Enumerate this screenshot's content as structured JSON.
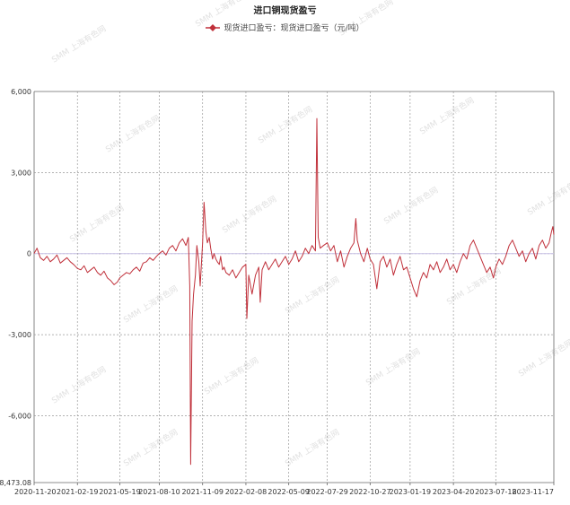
{
  "chart_data": {
    "type": "line",
    "title": "进口铜现货盈亏",
    "xlabel": "",
    "ylabel": "",
    "ylim": [
      -8473.08,
      6000
    ],
    "y_ticks": [
      6000,
      3000,
      0,
      -3000,
      -6000,
      -8473.08
    ],
    "y_tick_labels": [
      "6,000",
      "3,000",
      "0",
      "-3,000",
      "-6,000",
      "-8,473.08"
    ],
    "x_range": [
      "2020-11-20",
      "2023-11-17"
    ],
    "x_ticks": [
      "2020-11-20",
      "2021-02-19",
      "2021-05-19",
      "2021-08-10",
      "2021-11-09",
      "2022-02-08",
      "2022-05-09",
      "2022-07-29",
      "2022-10-27",
      "2023-01-19",
      "2023-04-20",
      "2023-07-18",
      "2023-11-17"
    ],
    "grid": true,
    "legend_position": "top-center",
    "series": [
      {
        "name": "现货进口盈亏：现货进口盈亏（元/吨）",
        "color": "#c0303a",
        "points": [
          [
            "2020-11-20",
            0
          ],
          [
            "2020-11-26",
            200
          ],
          [
            "2020-12-03",
            -150
          ],
          [
            "2020-12-10",
            -250
          ],
          [
            "2020-12-17",
            -100
          ],
          [
            "2020-12-24",
            -300
          ],
          [
            "2020-12-31",
            -200
          ],
          [
            "2021-01-07",
            -50
          ],
          [
            "2021-01-14",
            -350
          ],
          [
            "2021-01-21",
            -250
          ],
          [
            "2021-01-28",
            -150
          ],
          [
            "2021-02-04",
            -300
          ],
          [
            "2021-02-11",
            -400
          ],
          [
            "2021-02-19",
            -550
          ],
          [
            "2021-02-26",
            -600
          ],
          [
            "2021-03-05",
            -450
          ],
          [
            "2021-03-12",
            -700
          ],
          [
            "2021-03-19",
            -600
          ],
          [
            "2021-03-26",
            -500
          ],
          [
            "2021-04-02",
            -700
          ],
          [
            "2021-04-09",
            -800
          ],
          [
            "2021-04-16",
            -650
          ],
          [
            "2021-04-23",
            -900
          ],
          [
            "2021-04-30",
            -1000
          ],
          [
            "2021-05-07",
            -1150
          ],
          [
            "2021-05-14",
            -1050
          ],
          [
            "2021-05-19",
            -900
          ],
          [
            "2021-05-26",
            -800
          ],
          [
            "2021-06-02",
            -700
          ],
          [
            "2021-06-09",
            -750
          ],
          [
            "2021-06-16",
            -600
          ],
          [
            "2021-06-23",
            -500
          ],
          [
            "2021-06-30",
            -650
          ],
          [
            "2021-07-07",
            -350
          ],
          [
            "2021-07-14",
            -300
          ],
          [
            "2021-07-21",
            -150
          ],
          [
            "2021-07-28",
            -250
          ],
          [
            "2021-08-04",
            -100
          ],
          [
            "2021-08-10",
            0
          ],
          [
            "2021-08-17",
            100
          ],
          [
            "2021-08-24",
            -50
          ],
          [
            "2021-08-31",
            200
          ],
          [
            "2021-09-07",
            300
          ],
          [
            "2021-09-14",
            100
          ],
          [
            "2021-09-21",
            400
          ],
          [
            "2021-09-28",
            550
          ],
          [
            "2021-10-05",
            300
          ],
          [
            "2021-10-10",
            600
          ],
          [
            "2021-10-13",
            -1200
          ],
          [
            "2021-10-15",
            -7800
          ],
          [
            "2021-10-18",
            -2500
          ],
          [
            "2021-10-21",
            -1500
          ],
          [
            "2021-10-25",
            -800
          ],
          [
            "2021-10-28",
            300
          ],
          [
            "2021-11-01",
            -300
          ],
          [
            "2021-11-04",
            -1200
          ],
          [
            "2021-11-09",
            400
          ],
          [
            "2021-11-12",
            1900
          ],
          [
            "2021-11-16",
            800
          ],
          [
            "2021-11-19",
            400
          ],
          [
            "2021-11-23",
            600
          ],
          [
            "2021-11-26",
            200
          ],
          [
            "2021-11-30",
            -200
          ],
          [
            "2021-12-03",
            0
          ],
          [
            "2021-12-07",
            -200
          ],
          [
            "2021-12-10",
            -300
          ],
          [
            "2021-12-14",
            -400
          ],
          [
            "2021-12-17",
            -100
          ],
          [
            "2021-12-21",
            -600
          ],
          [
            "2021-12-24",
            -500
          ],
          [
            "2021-12-28",
            -700
          ],
          [
            "2022-01-04",
            -800
          ],
          [
            "2022-01-11",
            -600
          ],
          [
            "2022-01-18",
            -900
          ],
          [
            "2022-01-25",
            -700
          ],
          [
            "2022-02-01",
            -500
          ],
          [
            "2022-02-08",
            -400
          ],
          [
            "2022-02-10",
            -2400
          ],
          [
            "2022-02-14",
            -800
          ],
          [
            "2022-02-21",
            -1500
          ],
          [
            "2022-02-28",
            -800
          ],
          [
            "2022-03-07",
            -500
          ],
          [
            "2022-03-10",
            -1800
          ],
          [
            "2022-03-14",
            -600
          ],
          [
            "2022-03-21",
            -300
          ],
          [
            "2022-03-28",
            -600
          ],
          [
            "2022-04-04",
            -400
          ],
          [
            "2022-04-11",
            -200
          ],
          [
            "2022-04-18",
            -500
          ],
          [
            "2022-04-25",
            -300
          ],
          [
            "2022-05-02",
            -100
          ],
          [
            "2022-05-09",
            -400
          ],
          [
            "2022-05-16",
            -200
          ],
          [
            "2022-05-23",
            100
          ],
          [
            "2022-05-30",
            -300
          ],
          [
            "2022-06-06",
            -100
          ],
          [
            "2022-06-13",
            200
          ],
          [
            "2022-06-20",
            0
          ],
          [
            "2022-06-27",
            300
          ],
          [
            "2022-07-04",
            100
          ],
          [
            "2022-07-07",
            5000
          ],
          [
            "2022-07-10",
            600
          ],
          [
            "2022-07-14",
            200
          ],
          [
            "2022-07-21",
            300
          ],
          [
            "2022-07-29",
            400
          ],
          [
            "2022-08-05",
            100
          ],
          [
            "2022-08-12",
            300
          ],
          [
            "2022-08-19",
            -300
          ],
          [
            "2022-08-26",
            100
          ],
          [
            "2022-09-02",
            -500
          ],
          [
            "2022-09-09",
            -100
          ],
          [
            "2022-09-16",
            200
          ],
          [
            "2022-09-23",
            400
          ],
          [
            "2022-09-27",
            1300
          ],
          [
            "2022-09-30",
            500
          ],
          [
            "2022-10-07",
            0
          ],
          [
            "2022-10-14",
            -300
          ],
          [
            "2022-10-21",
            200
          ],
          [
            "2022-10-27",
            -200
          ],
          [
            "2022-11-03",
            -400
          ],
          [
            "2022-11-10",
            -1300
          ],
          [
            "2022-11-17",
            -300
          ],
          [
            "2022-11-24",
            -100
          ],
          [
            "2022-12-01",
            -500
          ],
          [
            "2022-12-08",
            -200
          ],
          [
            "2022-12-15",
            -800
          ],
          [
            "2022-12-22",
            -400
          ],
          [
            "2022-12-29",
            -100
          ],
          [
            "2023-01-05",
            -600
          ],
          [
            "2023-01-12",
            -500
          ],
          [
            "2023-01-19",
            -900
          ],
          [
            "2023-01-26",
            -1300
          ],
          [
            "2023-02-02",
            -1600
          ],
          [
            "2023-02-09",
            -1000
          ],
          [
            "2023-02-16",
            -700
          ],
          [
            "2023-02-23",
            -900
          ],
          [
            "2023-03-02",
            -400
          ],
          [
            "2023-03-09",
            -600
          ],
          [
            "2023-03-16",
            -300
          ],
          [
            "2023-03-23",
            -700
          ],
          [
            "2023-03-30",
            -500
          ],
          [
            "2023-04-06",
            -200
          ],
          [
            "2023-04-13",
            -600
          ],
          [
            "2023-04-20",
            -400
          ],
          [
            "2023-04-27",
            -700
          ],
          [
            "2023-05-04",
            -300
          ],
          [
            "2023-05-11",
            0
          ],
          [
            "2023-05-18",
            -200
          ],
          [
            "2023-05-25",
            300
          ],
          [
            "2023-06-01",
            500
          ],
          [
            "2023-06-08",
            200
          ],
          [
            "2023-06-15",
            -100
          ],
          [
            "2023-06-22",
            -400
          ],
          [
            "2023-06-29",
            -700
          ],
          [
            "2023-07-06",
            -500
          ],
          [
            "2023-07-13",
            -900
          ],
          [
            "2023-07-18",
            -500
          ],
          [
            "2023-07-25",
            -200
          ],
          [
            "2023-08-01",
            -400
          ],
          [
            "2023-08-08",
            -100
          ],
          [
            "2023-08-15",
            300
          ],
          [
            "2023-08-22",
            500
          ],
          [
            "2023-08-29",
            200
          ],
          [
            "2023-09-05",
            -100
          ],
          [
            "2023-09-12",
            100
          ],
          [
            "2023-09-19",
            -300
          ],
          [
            "2023-09-26",
            0
          ],
          [
            "2023-10-03",
            200
          ],
          [
            "2023-10-10",
            -200
          ],
          [
            "2023-10-17",
            300
          ],
          [
            "2023-10-24",
            500
          ],
          [
            "2023-10-31",
            200
          ],
          [
            "2023-11-07",
            400
          ],
          [
            "2023-11-12",
            800
          ],
          [
            "2023-11-15",
            1000
          ],
          [
            "2023-11-17",
            700
          ]
        ]
      }
    ],
    "watermark": "SMM 上海有色网"
  }
}
